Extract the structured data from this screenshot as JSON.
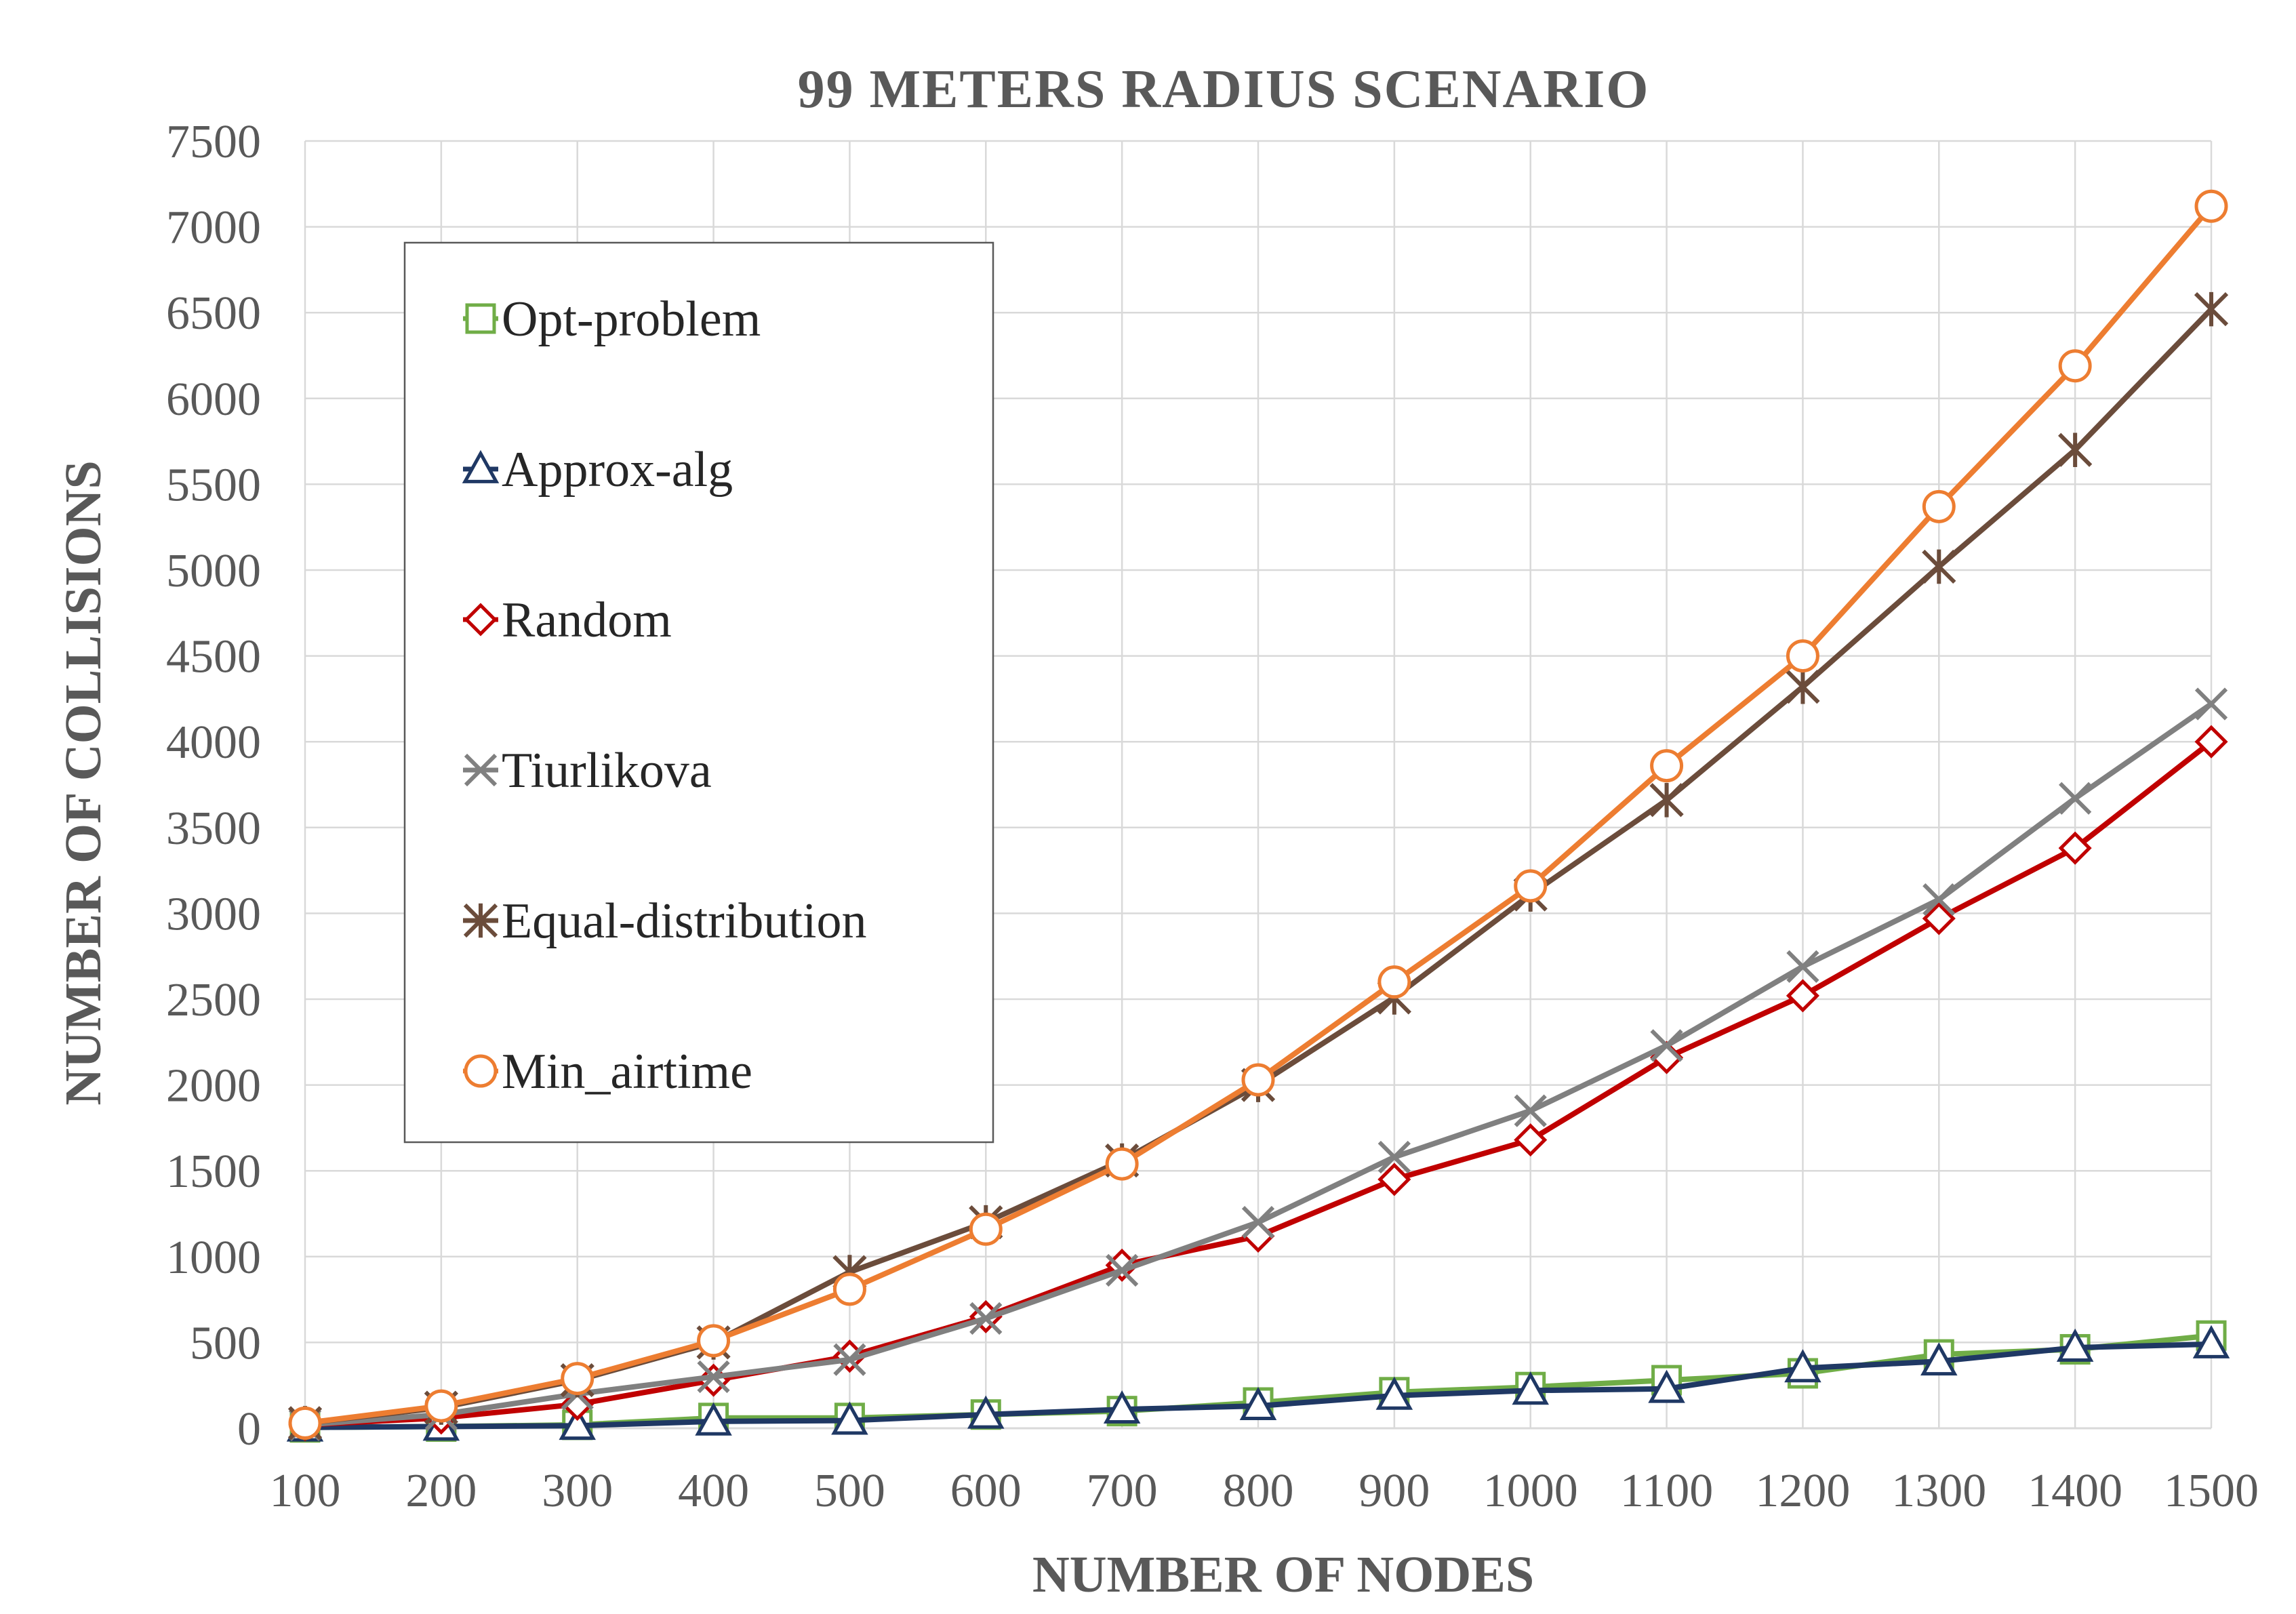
{
  "chart_data": {
    "type": "line",
    "title": "99 METERS RADIUS SCENARIO",
    "xlabel": "NUMBER OF NODES",
    "ylabel": "NUMBER OF COLLISIONS",
    "x": [
      100,
      200,
      300,
      400,
      500,
      600,
      700,
      800,
      900,
      1000,
      1100,
      1200,
      1300,
      1400,
      1500
    ],
    "ylim": [
      0,
      7500
    ],
    "yticks": [
      0,
      500,
      1000,
      1500,
      2000,
      2500,
      3000,
      3500,
      4000,
      4500,
      5000,
      5500,
      6000,
      6500,
      7000,
      7500
    ],
    "grid": true,
    "legend_position": "upper-left inside",
    "series": [
      {
        "name": "Opt-problem",
        "color": "#70ad47",
        "marker": "square",
        "values": [
          5,
          10,
          20,
          60,
          60,
          80,
          100,
          150,
          210,
          240,
          280,
          320,
          430,
          460,
          540
        ]
      },
      {
        "name": "Approx-alg",
        "color": "#1f3864",
        "marker": "triangle",
        "values": [
          5,
          10,
          15,
          40,
          45,
          80,
          110,
          130,
          190,
          220,
          230,
          350,
          390,
          470,
          490
        ]
      },
      {
        "name": "Random",
        "color": "#c00000",
        "marker": "diamond",
        "values": [
          20,
          60,
          140,
          280,
          420,
          650,
          950,
          1120,
          1450,
          1680,
          2160,
          2520,
          2970,
          3380,
          4000
        ]
      },
      {
        "name": "Tiurlikova",
        "color": "#808080",
        "marker": "x",
        "values": [
          20,
          80,
          200,
          300,
          400,
          640,
          920,
          1200,
          1580,
          1850,
          2230,
          2690,
          3080,
          3670,
          4220
        ]
      },
      {
        "name": "Equal-distribution",
        "color": "#6b4c3b",
        "marker": "star",
        "values": [
          30,
          120,
          280,
          500,
          910,
          1200,
          1560,
          2000,
          2510,
          3110,
          3660,
          4320,
          5020,
          5700,
          6520
        ]
      },
      {
        "name": "Min_airtime",
        "color": "#ed7d31",
        "marker": "circle",
        "values": [
          30,
          130,
          290,
          510,
          810,
          1160,
          1540,
          2030,
          2600,
          3160,
          3860,
          4500,
          5370,
          6190,
          7120
        ]
      }
    ]
  }
}
